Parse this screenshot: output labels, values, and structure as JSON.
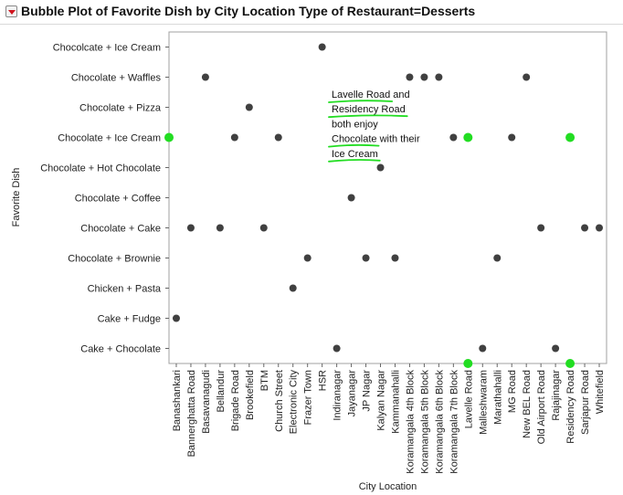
{
  "window": {
    "title": "Bubble Plot of Favorite Dish by City Location Type of Restaurant=Desserts",
    "menu_icon": "red-triangle-menu-icon"
  },
  "chart_data": {
    "type": "scatter",
    "title": "Bubble Plot of Favorite Dish by City Location Type of Restaurant=Desserts",
    "xlabel": "City Location",
    "ylabel": "Favorite Dish",
    "x_categories": [
      "Banashankari",
      "Bannerghatta Road",
      "Basavanagudi",
      "Bellandur",
      "Brigade Road",
      "Brookefield",
      "BTM",
      "Church Street",
      "Electronic City",
      "Frazer Town",
      "HSR",
      "Indiranagar",
      "Jayanagar",
      "JP Nagar",
      "Kalyan Nagar",
      "Kammanahalli",
      "Koramangala 4th Block",
      "Koramangala 5th Block",
      "Koramangala 6th Block",
      "Koramangala 7th Block",
      "Lavelle Road",
      "Malleshwaram",
      "Marathahalli",
      "MG Road",
      "New BEL Road",
      "Old Airport Road",
      "Rajajinagar",
      "Residency Road",
      "Sarjapur Road",
      "Whitefield"
    ],
    "y_categories": [
      "Cake + Chocolate",
      "Cake + Fudge",
      "Chicken + Pasta",
      "Chocolate + Brownie",
      "Chocolate + Cake",
      "Chocolate + Coffee",
      "Chocolate + Hot Chocolate",
      "Chocolate + Ice Cream",
      "Chocolate + Pizza",
      "Chocolate + Waffles",
      "Chocolcate + Ice Cream"
    ],
    "points": [
      {
        "x": "HSR",
        "y": "Chocolcate + Ice Cream"
      },
      {
        "x": "Basavanagudi",
        "y": "Chocolate + Waffles"
      },
      {
        "x": "Koramangala 4th Block",
        "y": "Chocolate + Waffles"
      },
      {
        "x": "Koramangala 5th Block",
        "y": "Chocolate + Waffles"
      },
      {
        "x": "Koramangala 6th Block",
        "y": "Chocolate + Waffles"
      },
      {
        "x": "New BEL Road",
        "y": "Chocolate + Waffles"
      },
      {
        "x": "Brookefield",
        "y": "Chocolate + Pizza"
      },
      {
        "x": "Brigade Road",
        "y": "Chocolate + Ice Cream"
      },
      {
        "x": "Church Street",
        "y": "Chocolate + Ice Cream"
      },
      {
        "x": "Koramangala 7th Block",
        "y": "Chocolate + Ice Cream"
      },
      {
        "x": "MG Road",
        "y": "Chocolate + Ice Cream"
      },
      {
        "x": "Lavelle Road",
        "y": "Chocolate + Ice Cream",
        "highlight": true
      },
      {
        "x": "Residency Road",
        "y": "Chocolate + Ice Cream",
        "highlight": true
      },
      {
        "x": "Kalyan Nagar",
        "y": "Chocolate + Hot Chocolate"
      },
      {
        "x": "Jayanagar",
        "y": "Chocolate + Coffee"
      },
      {
        "x": "Bannerghatta Road",
        "y": "Chocolate + Cake"
      },
      {
        "x": "Bellandur",
        "y": "Chocolate + Cake"
      },
      {
        "x": "BTM",
        "y": "Chocolate + Cake"
      },
      {
        "x": "Old Airport Road",
        "y": "Chocolate + Cake"
      },
      {
        "x": "Sarjapur Road",
        "y": "Chocolate + Cake"
      },
      {
        "x": "Whitefield",
        "y": "Chocolate + Cake"
      },
      {
        "x": "Frazer Town",
        "y": "Chocolate + Brownie"
      },
      {
        "x": "JP Nagar",
        "y": "Chocolate + Brownie"
      },
      {
        "x": "Kammanahalli",
        "y": "Chocolate + Brownie"
      },
      {
        "x": "Marathahalli",
        "y": "Chocolate + Brownie"
      },
      {
        "x": "Electronic City",
        "y": "Chicken + Pasta"
      },
      {
        "x": "Banashankari",
        "y": "Cake + Fudge"
      },
      {
        "x": "Indiranagar",
        "y": "Cake + Chocolate"
      },
      {
        "x": "Malleshwaram",
        "y": "Cake + Chocolate"
      },
      {
        "x": "Rajajinagar",
        "y": "Cake + Chocolate"
      }
    ],
    "highlight_markers": [
      {
        "axis": "y",
        "value": "Chocolate + Ice Cream"
      },
      {
        "axis": "x",
        "value": "Lavelle Road"
      },
      {
        "axis": "x",
        "value": "Residency Road"
      }
    ],
    "annotation": {
      "lines": [
        [
          {
            "text": "Lavelle Road",
            "underline": true
          },
          {
            "text": " and",
            "underline": false
          }
        ],
        [
          {
            "text": "Residency Road",
            "underline": true
          }
        ],
        [
          {
            "text": "both enjoy",
            "underline": false
          }
        ],
        [
          {
            "text": "Chocolate",
            "underline": true
          },
          {
            "text": " with their",
            "underline": false
          }
        ],
        [
          {
            "text": "Ice Cream",
            "underline": true
          }
        ]
      ]
    },
    "colors": {
      "point": "#404040",
      "highlight": "#22dd22",
      "underline": "#22dd22",
      "frame": "#a0a0a0"
    },
    "grid": false,
    "legend": "none"
  }
}
